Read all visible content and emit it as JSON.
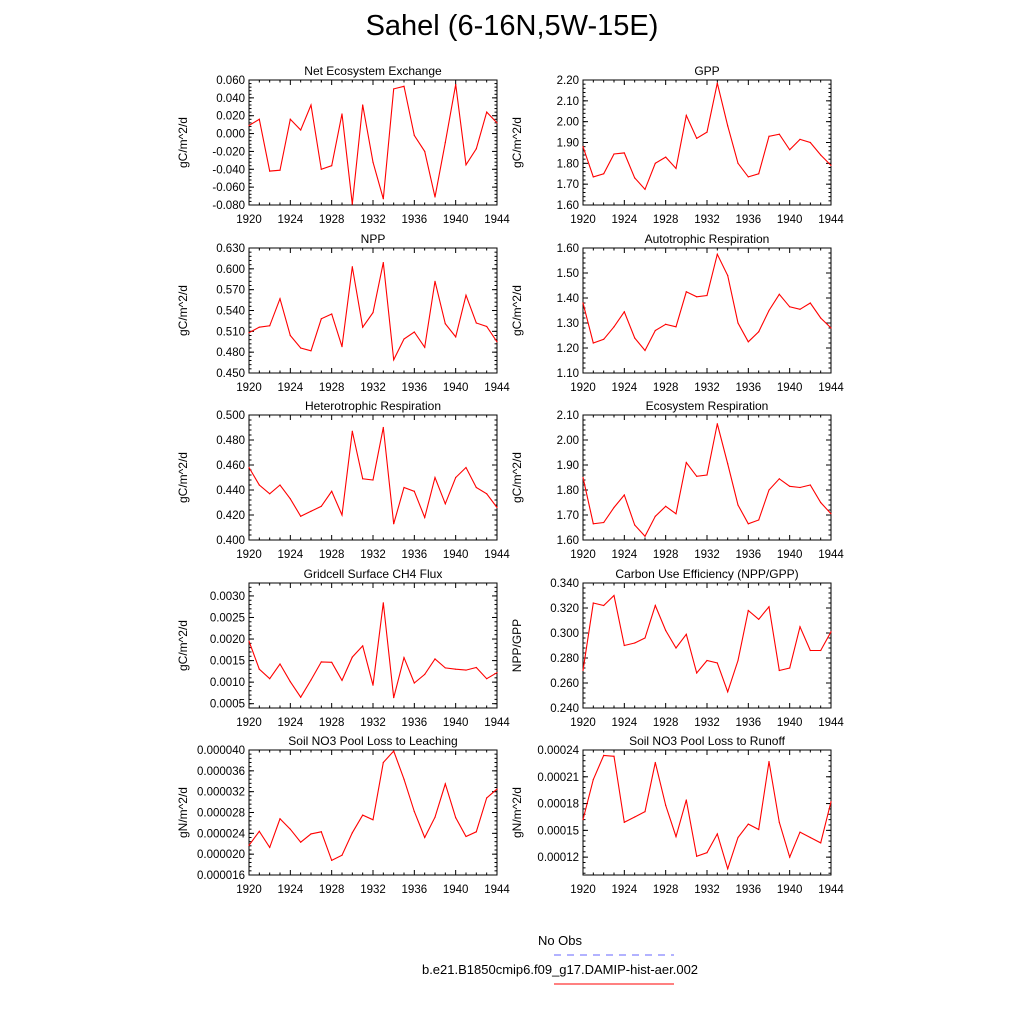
{
  "title": "Sahel (6-16N,5W-15E)",
  "colors": {
    "series": "#ff0000",
    "obs": "#6666ff",
    "axis": "#000000"
  },
  "legend": {
    "obs_label": "No Obs",
    "model_label": "b.e21.B1850cmip6.f09_g17.DAMIP-hist-aer.002"
  },
  "chart_data": [
    {
      "type": "line",
      "title": "Net Ecosystem Exchange",
      "xlabel": "",
      "ylabel": "gC/m^2/d",
      "ylim": [
        -0.08,
        0.06
      ],
      "yticks": [
        -0.08,
        -0.06,
        -0.04,
        -0.02,
        0,
        0.02,
        0.04,
        0.06
      ],
      "ydec": 3,
      "xlim": [
        1920,
        1944
      ],
      "xticks": [
        1920,
        1924,
        1928,
        1932,
        1936,
        1940,
        1944
      ],
      "x": [
        1920,
        1921,
        1922,
        1923,
        1924,
        1925,
        1926,
        1927,
        1928,
        1929,
        1930,
        1931,
        1932,
        1933,
        1934,
        1935,
        1936,
        1937,
        1938,
        1939,
        1940,
        1941,
        1942,
        1943,
        1944
      ],
      "values": [
        0.009,
        0.016,
        -0.042,
        -0.041,
        0.016,
        0.004,
        0.032,
        -0.04,
        -0.036,
        0.022,
        -0.079,
        0.032,
        -0.032,
        -0.073,
        0.05,
        0.053,
        -0.002,
        -0.02,
        -0.071,
        -0.01,
        0.055,
        -0.035,
        -0.017,
        0.024,
        0.012
      ]
    },
    {
      "type": "line",
      "title": "GPP",
      "xlabel": "",
      "ylabel": "gC/m^2/d",
      "ylim": [
        1.6,
        2.2
      ],
      "yticks": [
        1.6,
        1.7,
        1.8,
        1.9,
        2.0,
        2.1,
        2.2
      ],
      "ydec": 2,
      "xlim": [
        1920,
        1944
      ],
      "xticks": [
        1920,
        1924,
        1928,
        1932,
        1936,
        1940,
        1944
      ],
      "x": [
        1920,
        1921,
        1922,
        1923,
        1924,
        1925,
        1926,
        1927,
        1928,
        1929,
        1930,
        1931,
        1932,
        1933,
        1934,
        1935,
        1936,
        1937,
        1938,
        1939,
        1940,
        1941,
        1942,
        1943,
        1944
      ],
      "values": [
        1.88,
        1.735,
        1.75,
        1.845,
        1.85,
        1.73,
        1.675,
        1.8,
        1.83,
        1.775,
        2.03,
        1.92,
        1.95,
        2.185,
        1.98,
        1.8,
        1.735,
        1.75,
        1.93,
        1.94,
        1.865,
        1.915,
        1.9,
        1.84,
        1.79
      ]
    },
    {
      "type": "line",
      "title": "NPP",
      "xlabel": "",
      "ylabel": "gC/m^2/d",
      "ylim": [
        0.45,
        0.63
      ],
      "yticks": [
        0.45,
        0.48,
        0.51,
        0.54,
        0.57,
        0.6,
        0.63
      ],
      "ydec": 3,
      "xlim": [
        1920,
        1944
      ],
      "xticks": [
        1920,
        1924,
        1928,
        1932,
        1936,
        1940,
        1944
      ],
      "x": [
        1920,
        1921,
        1922,
        1923,
        1924,
        1925,
        1926,
        1927,
        1928,
        1929,
        1930,
        1931,
        1932,
        1933,
        1934,
        1935,
        1936,
        1937,
        1938,
        1939,
        1940,
        1941,
        1942,
        1943,
        1944
      ],
      "values": [
        0.508,
        0.516,
        0.518,
        0.557,
        0.504,
        0.486,
        0.482,
        0.528,
        0.535,
        0.488,
        0.603,
        0.516,
        0.537,
        0.609,
        0.469,
        0.499,
        0.509,
        0.487,
        0.582,
        0.521,
        0.502,
        0.562,
        0.522,
        0.517,
        0.495
      ]
    },
    {
      "type": "line",
      "title": "Autotrophic Respiration",
      "xlabel": "",
      "ylabel": "gC/m^2/d",
      "ylim": [
        1.1,
        1.6
      ],
      "yticks": [
        1.1,
        1.2,
        1.3,
        1.4,
        1.5,
        1.6
      ],
      "ydec": 2,
      "xlim": [
        1920,
        1944
      ],
      "xticks": [
        1920,
        1924,
        1928,
        1932,
        1936,
        1940,
        1944
      ],
      "x": [
        1920,
        1921,
        1922,
        1923,
        1924,
        1925,
        1926,
        1927,
        1928,
        1929,
        1930,
        1931,
        1932,
        1933,
        1934,
        1935,
        1936,
        1937,
        1938,
        1939,
        1940,
        1941,
        1942,
        1943,
        1944
      ],
      "values": [
        1.38,
        1.22,
        1.235,
        1.285,
        1.345,
        1.24,
        1.19,
        1.27,
        1.295,
        1.285,
        1.425,
        1.405,
        1.41,
        1.575,
        1.49,
        1.3,
        1.225,
        1.265,
        1.35,
        1.415,
        1.365,
        1.355,
        1.38,
        1.32,
        1.28
      ]
    },
    {
      "type": "line",
      "title": "Heterotrophic Respiration",
      "xlabel": "",
      "ylabel": "gC/m^2/d",
      "ylim": [
        0.4,
        0.5
      ],
      "yticks": [
        0.4,
        0.42,
        0.44,
        0.46,
        0.48,
        0.5
      ],
      "ydec": 3,
      "xlim": [
        1920,
        1944
      ],
      "xticks": [
        1920,
        1924,
        1928,
        1932,
        1936,
        1940,
        1944
      ],
      "x": [
        1920,
        1921,
        1922,
        1923,
        1924,
        1925,
        1926,
        1927,
        1928,
        1929,
        1930,
        1931,
        1932,
        1933,
        1934,
        1935,
        1936,
        1937,
        1938,
        1939,
        1940,
        1941,
        1942,
        1943,
        1944
      ],
      "values": [
        0.458,
        0.444,
        0.437,
        0.444,
        0.433,
        0.419,
        0.423,
        0.427,
        0.439,
        0.42,
        0.487,
        0.449,
        0.448,
        0.49,
        0.413,
        0.442,
        0.439,
        0.418,
        0.45,
        0.429,
        0.45,
        0.458,
        0.442,
        0.437,
        0.426
      ]
    },
    {
      "type": "line",
      "title": "Ecosystem Respiration",
      "xlabel": "",
      "ylabel": "gC/m^2/d",
      "ylim": [
        1.6,
        2.1
      ],
      "yticks": [
        1.6,
        1.7,
        1.8,
        1.9,
        2.0,
        2.1
      ],
      "ydec": 2,
      "xlim": [
        1920,
        1944
      ],
      "xticks": [
        1920,
        1924,
        1928,
        1932,
        1936,
        1940,
        1944
      ],
      "x": [
        1920,
        1921,
        1922,
        1923,
        1924,
        1925,
        1926,
        1927,
        1928,
        1929,
        1930,
        1931,
        1932,
        1933,
        1934,
        1935,
        1936,
        1937,
        1938,
        1939,
        1940,
        1941,
        1942,
        1943,
        1944
      ],
      "values": [
        1.85,
        1.665,
        1.67,
        1.73,
        1.78,
        1.66,
        1.615,
        1.695,
        1.735,
        1.705,
        1.91,
        1.855,
        1.86,
        2.065,
        1.905,
        1.74,
        1.665,
        1.68,
        1.8,
        1.845,
        1.815,
        1.81,
        1.82,
        1.75,
        1.705
      ]
    },
    {
      "type": "line",
      "title": "Gridcell Surface CH4 Flux",
      "xlabel": "",
      "ylabel": "gC/m^2/d",
      "ylim": [
        0.0004,
        0.0033
      ],
      "yticks": [
        0.0005,
        0.001,
        0.0015,
        0.002,
        0.0025,
        0.003
      ],
      "ydec": 4,
      "xlim": [
        1920,
        1944
      ],
      "xticks": [
        1920,
        1924,
        1928,
        1932,
        1936,
        1940,
        1944
      ],
      "x": [
        1920,
        1921,
        1922,
        1923,
        1924,
        1925,
        1926,
        1927,
        1928,
        1929,
        1930,
        1931,
        1932,
        1933,
        1934,
        1935,
        1936,
        1937,
        1938,
        1939,
        1940,
        1941,
        1942,
        1943,
        1944
      ],
      "values": [
        0.00195,
        0.0013,
        0.00108,
        0.00142,
        0.00101,
        0.00065,
        0.00105,
        0.00147,
        0.00146,
        0.00104,
        0.00158,
        0.00184,
        0.00093,
        0.00284,
        0.00064,
        0.00157,
        0.00098,
        0.00118,
        0.00154,
        0.00133,
        0.0013,
        0.00128,
        0.00134,
        0.00108,
        0.00122
      ]
    },
    {
      "type": "line",
      "title": "Carbon Use Efficiency (NPP/GPP)",
      "xlabel": "",
      "ylabel": "NPP/GPP",
      "ylim": [
        0.24,
        0.34
      ],
      "yticks": [
        0.24,
        0.26,
        0.28,
        0.3,
        0.32,
        0.34
      ],
      "ydec": 3,
      "xlim": [
        1920,
        1944
      ],
      "xticks": [
        1920,
        1924,
        1928,
        1932,
        1936,
        1940,
        1944
      ],
      "x": [
        1920,
        1921,
        1922,
        1923,
        1924,
        1925,
        1926,
        1927,
        1928,
        1929,
        1930,
        1931,
        1932,
        1933,
        1934,
        1935,
        1936,
        1937,
        1938,
        1939,
        1940,
        1941,
        1942,
        1943,
        1944
      ],
      "values": [
        0.27,
        0.324,
        0.322,
        0.33,
        0.29,
        0.292,
        0.296,
        0.322,
        0.302,
        0.288,
        0.299,
        0.268,
        0.278,
        0.276,
        0.253,
        0.278,
        0.318,
        0.311,
        0.321,
        0.27,
        0.272,
        0.305,
        0.286,
        0.286,
        0.301
      ]
    },
    {
      "type": "line",
      "title": "Soil NO3 Pool Loss to Leaching",
      "xlabel": "",
      "ylabel": "gN/m^2/d",
      "ylim": [
        1.6e-05,
        4e-05
      ],
      "yticks": [
        1.6e-05,
        2e-05,
        2.4e-05,
        2.8e-05,
        3.2e-05,
        3.6e-05,
        4e-05
      ],
      "ydec": 6,
      "xlim": [
        1920,
        1944
      ],
      "xticks": [
        1920,
        1924,
        1928,
        1932,
        1936,
        1940,
        1944
      ],
      "x": [
        1920,
        1921,
        1922,
        1923,
        1924,
        1925,
        1926,
        1927,
        1928,
        1929,
        1930,
        1931,
        1932,
        1933,
        1934,
        1935,
        1936,
        1937,
        1938,
        1939,
        1940,
        1941,
        1942,
        1943,
        1944
      ],
      "values": [
        2.17e-05,
        2.44e-05,
        2.13e-05,
        2.68e-05,
        2.48e-05,
        2.23e-05,
        2.39e-05,
        2.43e-05,
        1.88e-05,
        1.98e-05,
        2.41e-05,
        2.75e-05,
        2.66e-05,
        3.76e-05,
        3.98e-05,
        3.44e-05,
        2.82e-05,
        2.32e-05,
        2.71e-05,
        3.35e-05,
        2.7e-05,
        2.34e-05,
        2.43e-05,
        3.08e-05,
        3.25e-05
      ]
    },
    {
      "type": "line",
      "title": "Soil NO3 Pool Loss to Runoff",
      "xlabel": "",
      "ylabel": "gN/m^2/d",
      "ylim": [
        0.0001,
        0.00024
      ],
      "yticks": [
        0.00012,
        0.00015,
        0.00018,
        0.00021,
        0.00024
      ],
      "ydec": 5,
      "xlim": [
        1920,
        1944
      ],
      "xticks": [
        1920,
        1924,
        1928,
        1932,
        1936,
        1940,
        1944
      ],
      "x": [
        1920,
        1921,
        1922,
        1923,
        1924,
        1925,
        1926,
        1927,
        1928,
        1929,
        1930,
        1931,
        1932,
        1933,
        1934,
        1935,
        1936,
        1937,
        1938,
        1939,
        1940,
        1941,
        1942,
        1943,
        1944
      ],
      "values": [
        0.000162,
        0.000207,
        0.000234,
        0.000233,
        0.000159,
        0.000165,
        0.000171,
        0.000226,
        0.000178,
        0.000143,
        0.000184,
        0.000121,
        0.000125,
        0.000146,
        0.000107,
        0.000142,
        0.000157,
        0.000151,
        0.000227,
        0.000159,
        0.00012,
        0.000148,
        0.000142,
        0.000136,
        0.000182
      ]
    }
  ]
}
